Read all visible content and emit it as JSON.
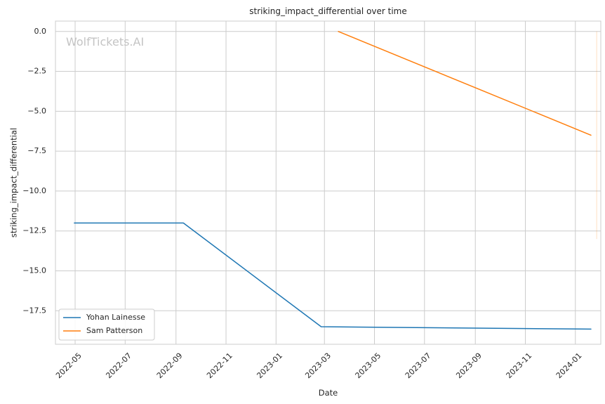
{
  "chart_data": {
    "type": "line",
    "title": "striking_impact_differential over time",
    "xlabel": "Date",
    "ylabel": "striking_impact_differential",
    "watermark": "WolfTickets.AI",
    "x_ticks": [
      "2022-05",
      "2022-07",
      "2022-09",
      "2022-11",
      "2023-01",
      "2023-03",
      "2023-05",
      "2023-07",
      "2023-09",
      "2023-11",
      "2024-01"
    ],
    "y_ticks": [
      0.0,
      -2.5,
      -5.0,
      -7.5,
      -10.0,
      -12.5,
      -15.0,
      -17.5
    ],
    "y_tick_labels": [
      "0.0",
      "−2.5",
      "−5.0",
      "−7.5",
      "−10.0",
      "−12.5",
      "−15.0",
      "−17.5"
    ],
    "xlim": [
      "2022-04-07",
      "2024-02-01"
    ],
    "ylim": [
      -19.6,
      0.65
    ],
    "grid": true,
    "legend_position": "lower-left",
    "series": [
      {
        "name": "Yohan Lainesse",
        "color": "#1f77b4",
        "points": [
          {
            "x": "2022-04-30",
            "y": -12.0
          },
          {
            "x": "2022-09-10",
            "y": -12.0
          },
          {
            "x": "2023-02-25",
            "y": -18.5
          },
          {
            "x": "2024-01-20",
            "y": -18.65
          }
        ]
      },
      {
        "name": "Sam Patterson",
        "color": "#ff7f0e",
        "points": [
          {
            "x": "2023-03-18",
            "y": 0.0
          },
          {
            "x": "2024-01-20",
            "y": -6.5
          }
        ]
      }
    ],
    "annotations": [
      {
        "type": "vline",
        "x": "2024-01-27",
        "y_from": 0.0,
        "y_to": -13.0,
        "color": "#ff7f0e",
        "opacity": 0.25
      }
    ]
  }
}
